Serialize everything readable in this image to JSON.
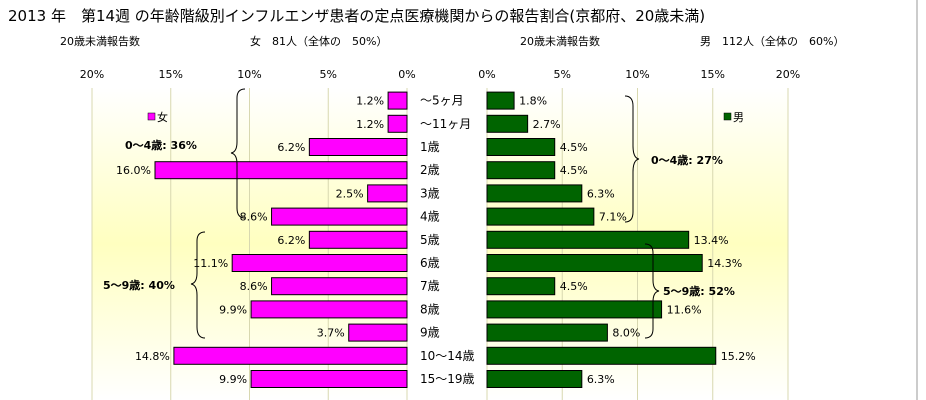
{
  "title": "2013 年　第14週 の年齢階級別インフルエンザ患者の定点医療機関からの報告割合(京都府、20歳未満)",
  "left_header": {
    "label": "20歳未満報告数",
    "stat": "女　81人（全体の　50%）"
  },
  "right_header": {
    "label": "20歳未満報告数",
    "stat": "男　112人（全体の　60%）"
  },
  "chart_data": {
    "type": "bar",
    "categories": [
      "～5ヶ月",
      "～11ヶ月",
      "1歳",
      "2歳",
      "3歳",
      "4歳",
      "5歳",
      "6歳",
      "7歳",
      "8歳",
      "9歳",
      "10～14歳",
      "15～19歳"
    ],
    "series": [
      {
        "name": "女",
        "color": "#ff00ff",
        "values": [
          1.2,
          1.2,
          6.2,
          16.0,
          2.5,
          8.6,
          6.2,
          11.1,
          8.6,
          9.9,
          3.7,
          14.8,
          9.9
        ]
      },
      {
        "name": "男",
        "color": "#006400",
        "values": [
          1.8,
          2.7,
          4.5,
          4.5,
          6.3,
          7.1,
          13.4,
          14.3,
          4.5,
          11.6,
          8.0,
          15.2,
          6.3
        ]
      }
    ],
    "left_ticks": [
      "20%",
      "15%",
      "10%",
      "5%",
      "0%"
    ],
    "right_ticks": [
      "0%",
      "5%",
      "10%",
      "15%",
      "20%"
    ],
    "xlim": [
      0,
      20
    ],
    "unit_suffix": "%",
    "annotations": {
      "female": [
        {
          "label": "0～4歳:  36%"
        },
        {
          "label": "5～9歳:  40%"
        }
      ],
      "male": [
        {
          "label": "0～4歳:  27%"
        },
        {
          "label": "5～9歳:  52%"
        }
      ]
    },
    "legend": {
      "female": "女",
      "male": "男"
    }
  }
}
